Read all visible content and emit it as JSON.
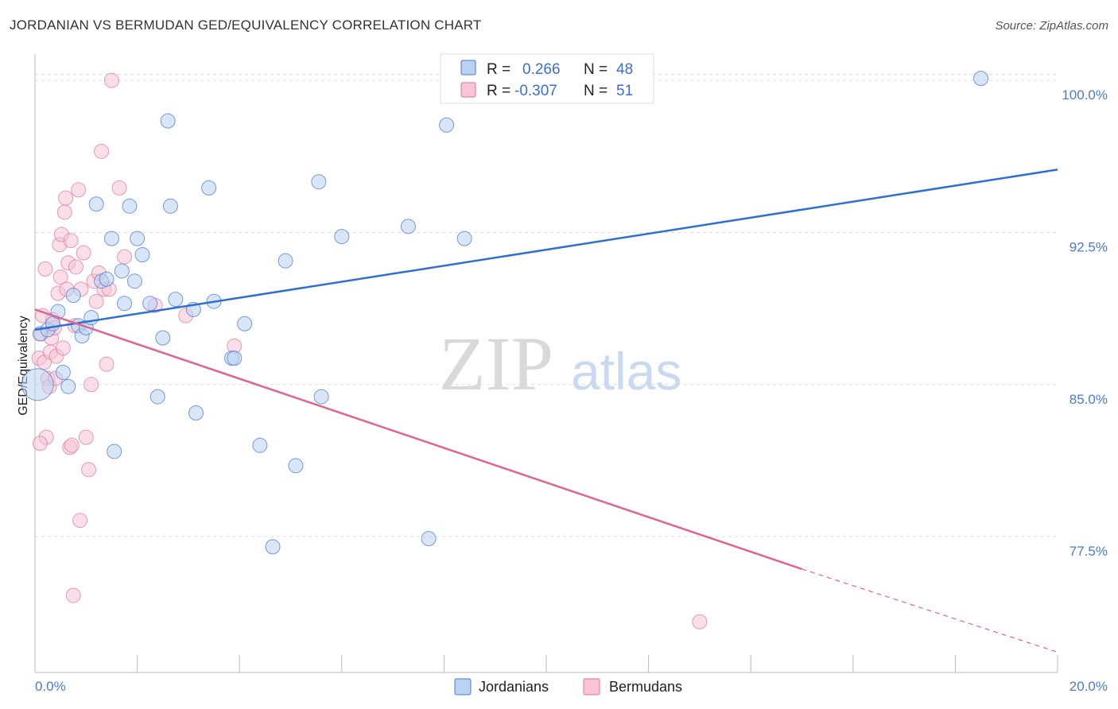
{
  "title": "JORDANIAN VS BERMUDAN GED/EQUIVALENCY CORRELATION CHART",
  "source": "Source: ZipAtlas.com",
  "watermark": {
    "zip": "ZIP",
    "atlas": "atlas"
  },
  "colors": {
    "blue": "#4a7bd0",
    "blue_fill": "#b9d2f3",
    "pink": "#e07098",
    "pink_fill": "#f8c4d6",
    "grid": "#dddddd"
  },
  "legend": {
    "rows": [
      {
        "r_label": "R =",
        "r_value": "0.266",
        "n_label": "N =",
        "n_value": "48"
      },
      {
        "r_label": "R =",
        "r_value": "-0.307",
        "n_label": "N =",
        "n_value": "51"
      }
    ]
  },
  "bottom_legend": [
    "Jordanians",
    "Bermudans"
  ],
  "chart_data": {
    "type": "scatter",
    "title": "JORDANIAN VS BERMUDAN GED/EQUIVALENCY CORRELATION CHART",
    "xlabel": "",
    "ylabel": "GED/Equivalency",
    "xlim": [
      0,
      20
    ],
    "ylim": [
      70.8,
      101.3
    ],
    "x_tick_labels": [
      "0.0%",
      "20.0%"
    ],
    "y_ticks": [
      77.5,
      85.0,
      92.5,
      100.0
    ],
    "y_tick_labels": [
      "77.5%",
      "85.0%",
      "92.5%",
      "100.0%"
    ],
    "grid": true,
    "legend_position": "top-center",
    "series": [
      {
        "name": "Jordanians",
        "r": 0.266,
        "n": 48,
        "trend": {
          "x": [
            0.0,
            20.0
          ],
          "y": [
            87.7,
            95.6
          ],
          "dashed_from_x": null
        },
        "points": [
          [
            0.1,
            87.5
          ],
          [
            0.25,
            87.7
          ],
          [
            0.35,
            88.0
          ],
          [
            0.45,
            88.6
          ],
          [
            0.55,
            85.6
          ],
          [
            0.65,
            84.9
          ],
          [
            0.75,
            89.4
          ],
          [
            0.85,
            87.9
          ],
          [
            0.92,
            87.4
          ],
          [
            1.0,
            87.8
          ],
          [
            1.1,
            88.3
          ],
          [
            1.2,
            93.9
          ],
          [
            1.3,
            90.1
          ],
          [
            1.4,
            90.2
          ],
          [
            1.5,
            92.2
          ],
          [
            1.55,
            81.7
          ],
          [
            1.7,
            90.6
          ],
          [
            1.75,
            89.0
          ],
          [
            1.85,
            93.8
          ],
          [
            1.95,
            90.1
          ],
          [
            2.0,
            92.2
          ],
          [
            2.1,
            91.4
          ],
          [
            2.25,
            89.0
          ],
          [
            2.4,
            84.4
          ],
          [
            2.5,
            87.3
          ],
          [
            2.6,
            98.0
          ],
          [
            2.65,
            93.8
          ],
          [
            2.75,
            89.2
          ],
          [
            3.1,
            88.7
          ],
          [
            3.15,
            83.6
          ],
          [
            3.4,
            94.7
          ],
          [
            3.5,
            89.1
          ],
          [
            3.85,
            86.3
          ],
          [
            3.9,
            86.3
          ],
          [
            4.1,
            88.0
          ],
          [
            4.4,
            82.0
          ],
          [
            4.65,
            77.0
          ],
          [
            4.9,
            91.1
          ],
          [
            5.1,
            81.0
          ],
          [
            5.55,
            95.0
          ],
          [
            5.6,
            84.4
          ],
          [
            6.0,
            92.3
          ],
          [
            7.3,
            92.8
          ],
          [
            7.7,
            77.4
          ],
          [
            8.05,
            97.8
          ],
          [
            8.4,
            92.2
          ],
          [
            18.5,
            100.1
          ],
          [
            0.05,
            85.0
          ]
        ],
        "big_point": [
          0.05,
          85.0
        ]
      },
      {
        "name": "Bermudans",
        "r": -0.307,
        "n": 51,
        "trend": {
          "x": [
            0.0,
            15.0
          ],
          "y": [
            88.7,
            75.9
          ],
          "dashed_from_x": 15.0,
          "dashed_to": [
            20.0,
            71.8
          ]
        },
        "points": [
          [
            0.08,
            86.3
          ],
          [
            0.12,
            87.5
          ],
          [
            0.15,
            88.4
          ],
          [
            0.18,
            86.1
          ],
          [
            0.2,
            90.7
          ],
          [
            0.22,
            82.4
          ],
          [
            0.25,
            85.3
          ],
          [
            0.28,
            84.9
          ],
          [
            0.3,
            86.6
          ],
          [
            0.32,
            87.3
          ],
          [
            0.35,
            88.2
          ],
          [
            0.38,
            87.8
          ],
          [
            0.42,
            86.4
          ],
          [
            0.45,
            89.5
          ],
          [
            0.48,
            91.9
          ],
          [
            0.5,
            90.3
          ],
          [
            0.52,
            92.4
          ],
          [
            0.55,
            86.8
          ],
          [
            0.58,
            93.5
          ],
          [
            0.6,
            94.2
          ],
          [
            0.62,
            89.7
          ],
          [
            0.65,
            91.0
          ],
          [
            0.68,
            81.9
          ],
          [
            0.7,
            92.1
          ],
          [
            0.72,
            82.0
          ],
          [
            0.75,
            74.6
          ],
          [
            0.78,
            87.9
          ],
          [
            0.8,
            90.8
          ],
          [
            0.85,
            94.6
          ],
          [
            0.88,
            78.3
          ],
          [
            0.9,
            89.7
          ],
          [
            0.95,
            91.5
          ],
          [
            1.0,
            82.4
          ],
          [
            1.05,
            80.8
          ],
          [
            1.1,
            85.0
          ],
          [
            1.15,
            90.1
          ],
          [
            1.2,
            89.1
          ],
          [
            1.25,
            90.5
          ],
          [
            1.3,
            96.5
          ],
          [
            1.35,
            89.7
          ],
          [
            1.4,
            86.0
          ],
          [
            1.45,
            89.7
          ],
          [
            1.5,
            100.0
          ],
          [
            1.65,
            94.7
          ],
          [
            1.75,
            91.3
          ],
          [
            2.35,
            88.9
          ],
          [
            2.95,
            88.4
          ],
          [
            3.9,
            86.9
          ],
          [
            13.0,
            73.3
          ],
          [
            0.1,
            82.1
          ],
          [
            0.4,
            85.3
          ]
        ]
      }
    ]
  }
}
